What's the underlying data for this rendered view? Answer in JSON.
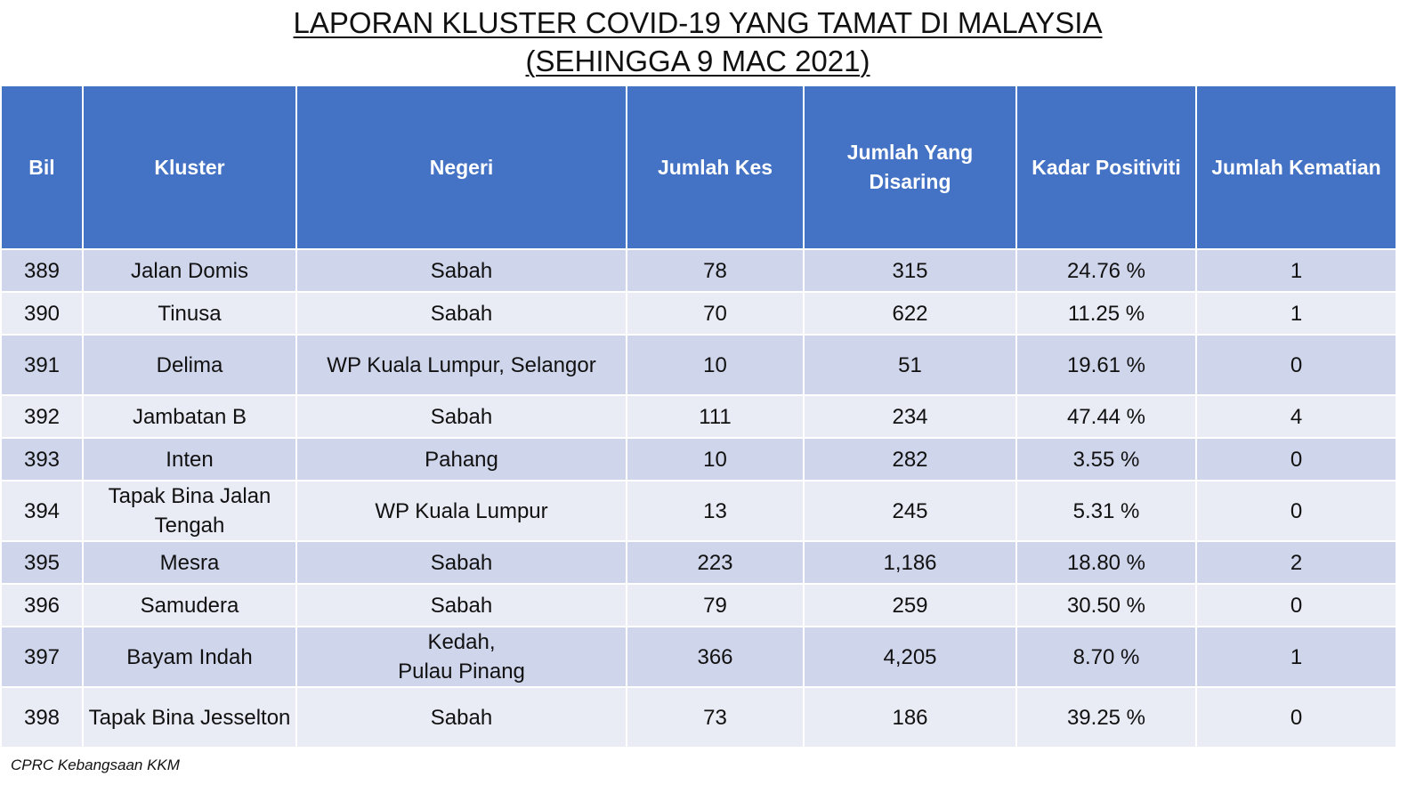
{
  "title": {
    "line1": "LAPORAN KLUSTER COVID-19 YANG TAMAT DI MALAYSIA",
    "line2": "(SEHINGGA  9 MAC 2021)"
  },
  "table": {
    "headers": {
      "bil": "Bil",
      "kluster": "Kluster",
      "negeri": "Negeri",
      "jumlah_kes": "Jumlah Kes",
      "jumlah_disaring_line1": "Jumlah Yang",
      "jumlah_disaring_line2": "Disaring",
      "kadar_positiviti": "Kadar Positiviti",
      "jumlah_kematian": "Jumlah Kematian"
    },
    "rows": [
      {
        "bil": "389",
        "kluster_line1": "Jalan Domis",
        "kluster_line2": "",
        "negeri_line1": "Sabah",
        "negeri_line2": "",
        "kes": "78",
        "disaring": "315",
        "positiviti": "24.76 %",
        "kematian": "1"
      },
      {
        "bil": "390",
        "kluster_line1": "Tinusa",
        "kluster_line2": "",
        "negeri_line1": "Sabah",
        "negeri_line2": "",
        "kes": "70",
        "disaring": "622",
        "positiviti": "11.25 %",
        "kematian": "1"
      },
      {
        "bil": "391",
        "kluster_line1": "Delima",
        "kluster_line2": "",
        "negeri_line1": "WP Kuala Lumpur, Selangor",
        "negeri_line2": "",
        "kes": "10",
        "disaring": "51",
        "positiviti": "19.61 %",
        "kematian": "0"
      },
      {
        "bil": "392",
        "kluster_line1": "Jambatan B",
        "kluster_line2": "",
        "negeri_line1": "Sabah",
        "negeri_line2": "",
        "kes": "111",
        "disaring": "234",
        "positiviti": "47.44 %",
        "kematian": "4"
      },
      {
        "bil": "393",
        "kluster_line1": "Inten",
        "kluster_line2": "",
        "negeri_line1": "Pahang",
        "negeri_line2": "",
        "kes": "10",
        "disaring": "282",
        "positiviti": "3.55 %",
        "kematian": "0"
      },
      {
        "bil": "394",
        "kluster_line1": "Tapak Bina Jalan",
        "kluster_line2": "Tengah",
        "negeri_line1": "WP Kuala Lumpur",
        "negeri_line2": "",
        "kes": "13",
        "disaring": "245",
        "positiviti": "5.31 %",
        "kematian": "0"
      },
      {
        "bil": "395",
        "kluster_line1": "Mesra",
        "kluster_line2": "",
        "negeri_line1": "Sabah",
        "negeri_line2": "",
        "kes": "223",
        "disaring": "1,186",
        "positiviti": "18.80 %",
        "kematian": "2"
      },
      {
        "bil": "396",
        "kluster_line1": "Samudera",
        "kluster_line2": "",
        "negeri_line1": "Sabah",
        "negeri_line2": "",
        "kes": "79",
        "disaring": "259",
        "positiviti": "30.50 %",
        "kematian": "0"
      },
      {
        "bil": "397",
        "kluster_line1": "Bayam Indah",
        "kluster_line2": "",
        "negeri_line1": "Kedah,",
        "negeri_line2": "Pulau Pinang",
        "kes": "366",
        "disaring": "4,205",
        "positiviti": "8.70 %",
        "kematian": "1"
      },
      {
        "bil": "398",
        "kluster_line1": "Tapak Bina Jesselton",
        "kluster_line2": "",
        "negeri_line1": "Sabah",
        "negeri_line2": "",
        "kes": "73",
        "disaring": "186",
        "positiviti": "39.25 %",
        "kematian": "0"
      }
    ]
  },
  "footer": "CPRC Kebangsaan KKM",
  "colors": {
    "header_bg": "#4472c4",
    "row_odd": "#cfd5ea",
    "row_even": "#e9ebf5"
  }
}
